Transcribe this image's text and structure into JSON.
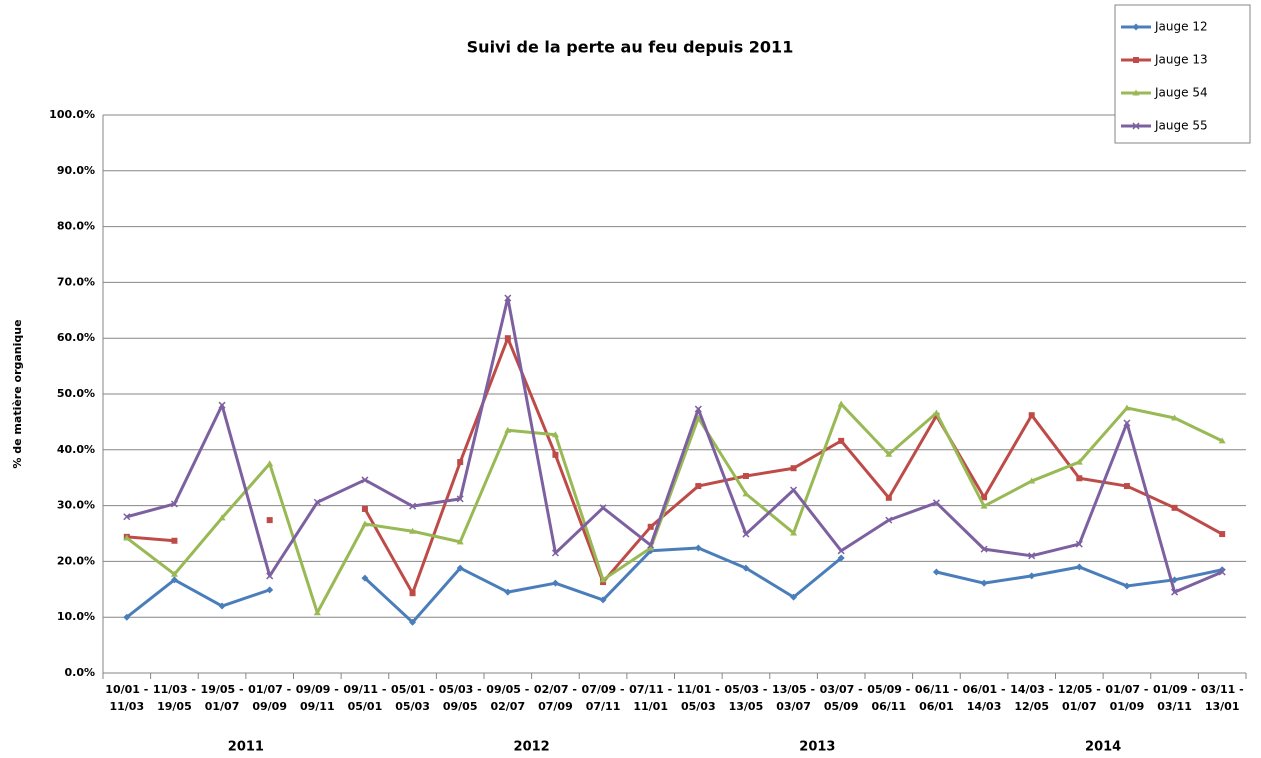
{
  "chart_data": {
    "type": "line",
    "title": "Suivi de la perte au feu depuis 2011",
    "y_label": "% de matière organique",
    "categories": [
      [
        "10/01 -",
        "11/03"
      ],
      [
        "11/03 -",
        "19/05"
      ],
      [
        "19/05 -",
        "01/07"
      ],
      [
        "01/07 -",
        "09/09"
      ],
      [
        "09/09 -",
        "09/11"
      ],
      [
        "09/11 -",
        "05/01"
      ],
      [
        "05/01 -",
        "05/03"
      ],
      [
        "05/03 -",
        "09/05"
      ],
      [
        "09/05 -",
        "02/07"
      ],
      [
        "02/07 -",
        "07/09"
      ],
      [
        "07/09 -",
        "07/11"
      ],
      [
        "07/11 -",
        "11/01"
      ],
      [
        "11/01 -",
        "05/03"
      ],
      [
        "05/03 -",
        "13/05"
      ],
      [
        "13/05 -",
        "03/07"
      ],
      [
        "03/07 -",
        "05/09"
      ],
      [
        "05/09 -",
        "06/11"
      ],
      [
        "06/11 -",
        "06/01"
      ],
      [
        "06/01 -",
        "14/03"
      ],
      [
        "14/03 -",
        "12/05"
      ],
      [
        "12/05 -",
        "01/07"
      ],
      [
        "01/07 -",
        "01/09"
      ],
      [
        "01/09 -",
        "03/11"
      ],
      [
        "03/11 -",
        "13/01"
      ]
    ],
    "year_groups": [
      {
        "label": "2011",
        "start": 0,
        "end": 5
      },
      {
        "label": "2012",
        "start": 6,
        "end": 11
      },
      {
        "label": "2013",
        "start": 12,
        "end": 17
      },
      {
        "label": "2014",
        "start": 18,
        "end": 23
      }
    ],
    "series": [
      {
        "name": "Jauge 12",
        "color": "#4a7ebb",
        "marker": "diamond",
        "values": [
          10.0,
          16.7,
          12.0,
          14.9,
          null,
          17.0,
          9.1,
          18.8,
          14.5,
          16.1,
          13.1,
          21.9,
          22.4,
          18.8,
          13.6,
          20.6,
          null,
          18.1,
          16.1,
          17.4,
          19.0,
          15.6,
          16.7,
          18.5
        ]
      },
      {
        "name": "Jauge 13",
        "color": "#be4b48",
        "marker": "square",
        "values": [
          24.4,
          23.7,
          null,
          27.4,
          null,
          29.4,
          14.3,
          37.8,
          60.0,
          39.1,
          16.3,
          26.2,
          33.5,
          35.3,
          36.7,
          41.6,
          31.4,
          46.1,
          31.5,
          46.2,
          34.9,
          33.5,
          29.6,
          24.9
        ]
      },
      {
        "name": "Jauge 54",
        "color": "#98b954",
        "marker": "triangle",
        "values": [
          24.2,
          17.7,
          27.8,
          37.5,
          10.8,
          26.7,
          25.4,
          23.5,
          43.5,
          42.7,
          16.7,
          22.4,
          45.7,
          32.1,
          25.1,
          48.2,
          39.2,
          46.6,
          29.9,
          34.4,
          37.8,
          47.5,
          45.7,
          41.6
        ]
      },
      {
        "name": "Jauge 55",
        "color": "#7d60a0",
        "marker": "x",
        "values": [
          28.0,
          30.3,
          48.0,
          17.4,
          30.6,
          34.6,
          29.9,
          31.2,
          67.2,
          21.5,
          29.6,
          22.9,
          47.3,
          24.9,
          32.8,
          21.9,
          27.4,
          30.5,
          22.2,
          21.0,
          23.1,
          44.8,
          14.5,
          18.1
        ]
      }
    ],
    "ylim": [
      0,
      100
    ],
    "yticks": [
      {
        "value": 0,
        "label": "0.0%"
      },
      {
        "value": 10,
        "label": "10.0%"
      },
      {
        "value": 20,
        "label": "20.0%"
      },
      {
        "value": 30,
        "label": "30.0%"
      },
      {
        "value": 40,
        "label": "40.0%"
      },
      {
        "value": 50,
        "label": "50.0%"
      },
      {
        "value": 60,
        "label": "60.0%"
      },
      {
        "value": 70,
        "label": "70.0%"
      },
      {
        "value": 80,
        "label": "80.0%"
      },
      {
        "value": 90,
        "label": "90.0%"
      },
      {
        "value": 100,
        "label": "100.0%"
      }
    ],
    "grid": true,
    "legend": "top-right"
  }
}
